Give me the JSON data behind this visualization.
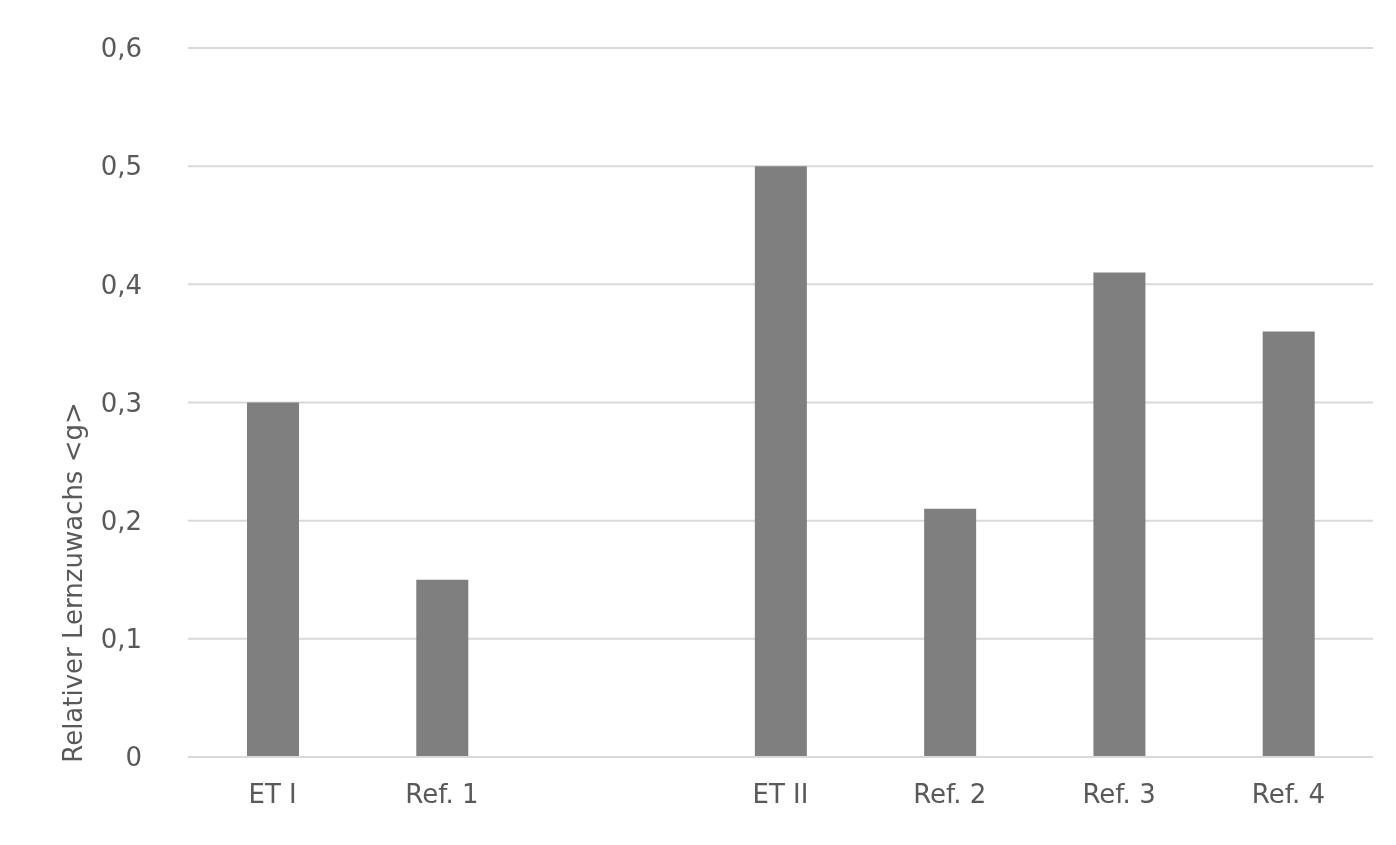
{
  "chart_data": {
    "type": "bar",
    "ylabel": "Relativer Lernzuwachs <g>",
    "categories": [
      "ET I",
      "Ref. 1",
      null,
      "ET II",
      "Ref. 2",
      "Ref. 3",
      "Ref. 4"
    ],
    "values": [
      0.3,
      0.15,
      null,
      0.5,
      0.21,
      0.41,
      0.36
    ],
    "color": "#7f7f7f",
    "ylim": [
      0,
      0.6
    ],
    "yticks": [
      0,
      {
        "value": 0.1,
        "label": "0,1"
      },
      {
        "value": 0.2,
        "label": "0,2"
      },
      {
        "value": 0.3,
        "label": "0,3"
      },
      {
        "value": 0.4,
        "label": "0,4"
      },
      {
        "value": 0.5,
        "label": "0,5"
      },
      {
        "value": 0.6,
        "label": "0,6"
      }
    ],
    "grid": "y"
  }
}
